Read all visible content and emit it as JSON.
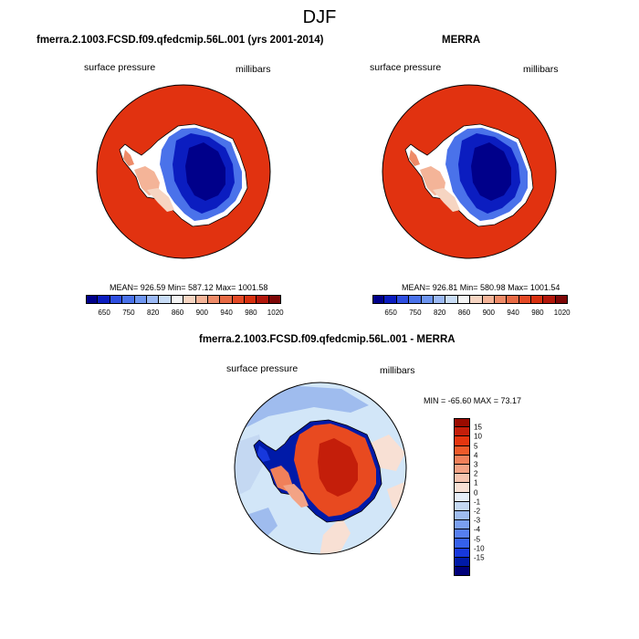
{
  "title": "DJF",
  "colors": {
    "ocean_red": "#e13210",
    "diff_ocean": "#d2e6f8",
    "diff_land": "#e84a20"
  },
  "panels": [
    {
      "title": "fmerra.2.1003.FCSD.f09.qfedcmip.56L.001 (yrs 2001-2014)",
      "left_label": "surface pressure",
      "right_label": "millibars",
      "stats": "MEAN= 926.59  Min= 587.12  Max= 1001.58"
    },
    {
      "title": "MERRA",
      "left_label": "surface pressure",
      "right_label": "millibars",
      "stats": "MEAN= 926.81  Min= 580.98  Max= 1001.54"
    }
  ],
  "colorbar_top": {
    "colors": [
      "#00008a",
      "#0b1dc0",
      "#2e4ee0",
      "#4a72ea",
      "#6d95f0",
      "#9ab8f4",
      "#c8dcf6",
      "#f4f4f4",
      "#f6d5c2",
      "#f4b498",
      "#ee8b68",
      "#e86a44",
      "#e44a26",
      "#d7300f",
      "#b2170b",
      "#7e0707"
    ],
    "tick_labels": [
      "650",
      "750",
      "820",
      "860",
      "900",
      "940",
      "980",
      "1020"
    ]
  },
  "diff_panel": {
    "title": "fmerra.2.1003.FCSD.f09.qfedcmip.56L.001 - MERRA",
    "left_label": "surface pressure",
    "right_label": "millibars",
    "stats": "MIN = -65.60 MAX =  73.17"
  },
  "colorbar_diff": {
    "colors": [
      "#9a0b00",
      "#c41e0a",
      "#e5350f",
      "#ee5a2a",
      "#f0805a",
      "#f3a385",
      "#f6c5b0",
      "#f8e0d4",
      "#e6eef8",
      "#c4d8f2",
      "#9fbcee",
      "#7a9ff0",
      "#567ff0",
      "#3560ea",
      "#1738dc",
      "#001aa8",
      "#00007a"
    ],
    "tick_labels": [
      "15",
      "10",
      "5",
      "4",
      "3",
      "2",
      "1",
      "0",
      "-1",
      "-2",
      "-3",
      "-4",
      "-5",
      "-10",
      "-15"
    ]
  }
}
